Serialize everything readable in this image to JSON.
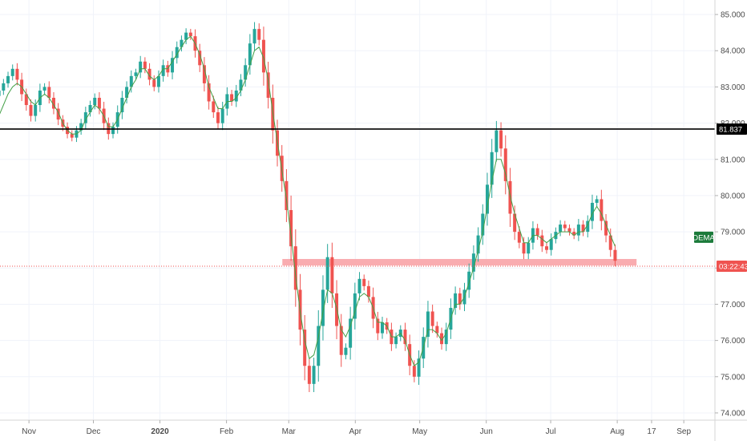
{
  "chart_data": {
    "type": "candlestick",
    "y_axis": {
      "ylim": [
        73.8,
        85.4
      ],
      "ticks": [
        "74.000",
        "75.000",
        "76.000",
        "77.000",
        "78.000",
        "79.000",
        "80.000",
        "81.000",
        "82.000",
        "83.000",
        "84.000",
        "85.000"
      ],
      "tick_values": [
        74,
        75,
        76,
        77,
        78,
        79,
        80,
        81,
        82,
        83,
        84,
        85
      ]
    },
    "x_axis": {
      "labels": [
        "Nov",
        "Dec",
        "2020",
        "Feb",
        "Mar",
        "Apr",
        "May",
        "Jun",
        "Jul",
        "Aug",
        "17",
        "Sep"
      ],
      "bold_labels": [
        "2020"
      ],
      "date_range": [
        "2019-10-18",
        "2020-09-08"
      ],
      "label_dates": [
        "2019-11-01",
        "2019-12-01",
        "2020-01-01",
        "2020-02-01",
        "2020-03-01",
        "2020-04-01",
        "2020-05-01",
        "2020-06-01",
        "2020-07-01",
        "2020-08-01",
        "2020-08-17",
        "2020-09-01"
      ]
    },
    "series": [
      {
        "kind": "candles",
        "up_color": "#26a69a",
        "down_color": "#ef5350",
        "closes": [
          82.9,
          83.1,
          83.3,
          83.5,
          83.2,
          82.8,
          82.5,
          82.2,
          82.5,
          82.9,
          83.0,
          82.7,
          82.4,
          82.1,
          81.9,
          81.7,
          81.6,
          81.8,
          82.0,
          82.3,
          82.5,
          82.7,
          82.4,
          82.0,
          81.7,
          81.9,
          82.3,
          82.7,
          83.0,
          83.3,
          83.4,
          83.7,
          83.5,
          83.2,
          83.0,
          83.3,
          83.6,
          83.4,
          83.8,
          84.1,
          84.3,
          84.5,
          84.4,
          84.0,
          83.6,
          83.1,
          82.6,
          82.3,
          82.0,
          82.4,
          82.8,
          82.6,
          82.9,
          83.2,
          83.6,
          84.2,
          84.6,
          84.3,
          83.4,
          82.7,
          81.8,
          81.1,
          80.4,
          79.6,
          78.6,
          77.4,
          76.3,
          75.3,
          74.8,
          75.3,
          76.4,
          77.4,
          78.3,
          77.3,
          76.4,
          75.6,
          75.8,
          76.6,
          77.3,
          77.7,
          77.5,
          77.2,
          76.6,
          76.2,
          76.5,
          76.3,
          75.9,
          76.1,
          76.3,
          75.9,
          75.3,
          75.0,
          75.5,
          76.1,
          76.8,
          76.4,
          76.2,
          75.9,
          76.3,
          76.9,
          77.3,
          77.0,
          77.4,
          77.9,
          78.4,
          78.9,
          79.5,
          80.3,
          81.2,
          81.8,
          81.3,
          80.4,
          79.5,
          79.0,
          78.7,
          78.4,
          78.7,
          79.1,
          78.9,
          78.6,
          78.5,
          78.8,
          79.0,
          79.2,
          79.1,
          79.0,
          78.9,
          79.2,
          79.0,
          79.3,
          79.8,
          79.9,
          79.3,
          78.9,
          78.5,
          78.2
        ],
        "date_start": "2019-10-18",
        "date_end": "2020-07-31"
      },
      {
        "name": "DEMA",
        "kind": "line",
        "color": "#43a047",
        "values": [
          82.2,
          82.5,
          82.8,
          83.0,
          83.1,
          83.0,
          82.8,
          82.6,
          82.5,
          82.7,
          82.8,
          82.7,
          82.5,
          82.3,
          82.0,
          81.8,
          81.7,
          81.7,
          81.8,
          82.1,
          82.3,
          82.5,
          82.4,
          82.2,
          81.9,
          81.9,
          82.1,
          82.4,
          82.7,
          83.0,
          83.2,
          83.5,
          83.5,
          83.3,
          83.2,
          83.3,
          83.5,
          83.5,
          83.7,
          83.9,
          84.1,
          84.3,
          84.4,
          84.2,
          83.9,
          83.5,
          83.0,
          82.7,
          82.4,
          82.4,
          82.6,
          82.6,
          82.7,
          82.9,
          83.2,
          83.6,
          84.0,
          84.1,
          83.8,
          83.2,
          82.3,
          81.5,
          80.7,
          79.9,
          78.9,
          77.8,
          76.8,
          76.0,
          75.5,
          75.6,
          76.1,
          76.8,
          77.4,
          77.3,
          76.9,
          76.3,
          76.1,
          76.4,
          76.8,
          77.2,
          77.3,
          77.2,
          76.9,
          76.5,
          76.5,
          76.4,
          76.1,
          76.1,
          76.2,
          76.0,
          75.6,
          75.3,
          75.4,
          75.8,
          76.3,
          76.3,
          76.2,
          76.0,
          76.2,
          76.6,
          77.0,
          77.0,
          77.2,
          77.6,
          78.0,
          78.5,
          79.0,
          79.7,
          80.4,
          81.0,
          81.0,
          80.6,
          80.0,
          79.5,
          79.1,
          78.7,
          78.7,
          78.9,
          78.9,
          78.8,
          78.7,
          78.8,
          78.9,
          79.0,
          79.0,
          79.0,
          78.9,
          79.0,
          79.0,
          79.2,
          79.5,
          79.7,
          79.5,
          79.2,
          78.9,
          78.6
        ]
      }
    ],
    "horizontal_level": {
      "value": 81.837,
      "label": "81.837",
      "color": "#000000"
    },
    "support_zone": {
      "from": 78.07,
      "to": 78.25,
      "color": "#f8a3a7",
      "date_start": "2020-03-01",
      "date_end": "2020-08-10"
    },
    "current_price_line": {
      "value": 78.05,
      "label": "03:22:43",
      "color": "#ef5350"
    },
    "legend_tag": {
      "label": "DEMA",
      "color": "#1b7a3a",
      "value": 78.85
    }
  }
}
